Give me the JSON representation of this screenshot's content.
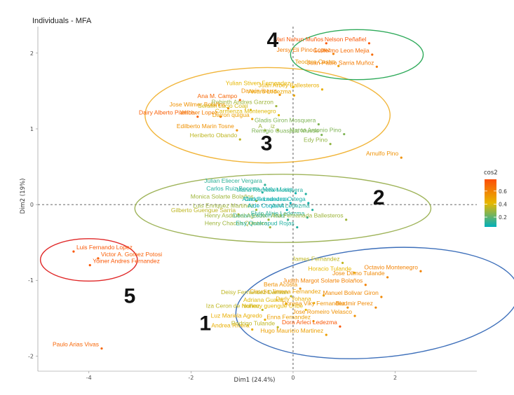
{
  "chart_data": {
    "type": "scatter",
    "title": "Individuals - MFA",
    "xlabel": "Dim1 (24.4%)",
    "ylabel": "Dim2 (19%)",
    "xlim": [
      -5.0,
      3.6
    ],
    "ylim": [
      -2.2,
      2.35
    ],
    "x_ticks": [
      -4,
      -2,
      0,
      2
    ],
    "y_ticks": [
      -2,
      -1,
      0,
      1,
      2
    ],
    "legend": {
      "title": "cos2",
      "ticks": [
        0.2,
        0.4,
        0.6
      ],
      "range": [
        0.05,
        0.78
      ],
      "placement": "right"
    },
    "colors": {
      "low": "#00AFBB",
      "mid": "#E7B800",
      "high": "#FC4E07"
    },
    "points": [
      {
        "label": "Vari Nahun Muños",
        "x": 0.65,
        "y": 2.13,
        "cos2": 0.75
      },
      {
        "label": "Nelson Peñafiel",
        "x": 1.49,
        "y": 2.13,
        "cos2": 0.75
      },
      {
        "label": "Jersy Eli Pino Lopez",
        "x": 0.79,
        "y": 1.99,
        "cos2": 0.62
      },
      {
        "label": "Guillermo Leon Mejia",
        "x": 1.55,
        "y": 1.98,
        "cos2": 0.68
      },
      {
        "label": "Teodoro Castro",
        "x": 0.89,
        "y": 1.83,
        "cos2": 0.52
      },
      {
        "label": "Juan Pablo Sarria Muñoz",
        "x": 1.64,
        "y": 1.82,
        "cos2": 0.62
      },
      {
        "label": "Yulian Stiven Fernandez",
        "x": 0.0,
        "y": 1.55,
        "cos2": 0.42
      },
      {
        "label": "Juan Arbey Ballesteros",
        "x": 0.57,
        "y": 1.52,
        "cos2": 0.45
      },
      {
        "label": "Darwin Ibarra",
        "x": -0.26,
        "y": 1.45,
        "cos2": 0.55
      },
      {
        "label": "Alvaro Ledezma",
        "x": 0.02,
        "y": 1.44,
        "cos2": 0.48
      },
      {
        "label": "Ana M. Campo",
        "x": -1.04,
        "y": 1.38,
        "cos2": 0.7
      },
      {
        "label": "Robinth Andres Garzon",
        "x": -0.33,
        "y": 1.3,
        "cos2": 0.3
      },
      {
        "label": "Jose Wilmer Bolaños",
        "x": -1.27,
        "y": 1.27,
        "cos2": 0.55
      },
      {
        "label": "Serafin Lucio Coaji",
        "x": -0.83,
        "y": 1.25,
        "cos2": 0.38
      },
      {
        "label": "Carmenza Montenegro",
        "x": -0.28,
        "y": 1.18,
        "cos2": 0.4
      },
      {
        "label": "Dairy Alberto Piamba",
        "x": -1.87,
        "y": 1.16,
        "cos2": 0.72
      },
      {
        "label": "Wilcher Lopez",
        "x": -1.42,
        "y": 1.16,
        "cos2": 0.62
      },
      {
        "label": "Dairon quigua",
        "x": -0.8,
        "y": 1.13,
        "cos2": 0.5
      },
      {
        "label": "Gladis Giron Mosquera",
        "x": 0.5,
        "y": 1.06,
        "cos2": 0.25
      },
      {
        "label": "Edilberto Marin Tosne",
        "x": -1.1,
        "y": 0.98,
        "cos2": 0.55
      },
      {
        "label": "A",
        "x": -0.55,
        "y": 0.98,
        "cos2": 0.3
      },
      {
        "label": "iz",
        "x": -0.3,
        "y": 0.98,
        "cos2": 0.3
      },
      {
        "label": "Marco Antonio Pino",
        "x": 1.0,
        "y": 0.93,
        "cos2": 0.25
      },
      {
        "label": "Remigio Guaspud Muese",
        "x": 0.56,
        "y": 0.92,
        "cos2": 0.25
      },
      {
        "label": "Heriberto Obando",
        "x": -1.04,
        "y": 0.86,
        "cos2": 0.35
      },
      {
        "label": "Edy Pino",
        "x": 0.73,
        "y": 0.8,
        "cos2": 0.28
      },
      {
        "label": "Arnulfo Pino",
        "x": 2.12,
        "y": 0.62,
        "cos2": 0.55
      },
      {
        "label": "Julian Eliecer Vergara",
        "x": -0.55,
        "y": 0.26,
        "cos2": 0.12
      },
      {
        "label": "Carlos Ruiz Becerra",
        "x": -0.6,
        "y": 0.16,
        "cos2": 0.1
      },
      {
        "label": "Melva Laso",
        "x": 0.05,
        "y": 0.15,
        "cos2": 0.08
      },
      {
        "label": "Maria Romelia Mosquera",
        "x": 0.25,
        "y": 0.14,
        "cos2": 0.1
      },
      {
        "label": "Monica Solarte Bolaños",
        "x": -0.72,
        "y": 0.05,
        "cos2": 0.3
      },
      {
        "label": "Carlos Ledezma",
        "x": -0.05,
        "y": 0.02,
        "cos2": 0.06
      },
      {
        "label": "Alirio Fernandez Ortega",
        "x": 0.3,
        "y": 0.02,
        "cos2": 0.08
      },
      {
        "label": "Luis Enriquez Martinez",
        "x": -0.72,
        "y": -0.07,
        "cos2": 0.3
      },
      {
        "label": "Aide Coque A",
        "x": -0.12,
        "y": -0.07,
        "cos2": 0.05
      },
      {
        "label": "Ariel Ledezma",
        "x": 0.38,
        "y": -0.07,
        "cos2": 0.1
      },
      {
        "label": "Gilberto Guengue Sarria",
        "x": -1.07,
        "y": -0.13,
        "cos2": 0.35
      },
      {
        "label": "Henry Asdrubal Agredo",
        "x": -0.48,
        "y": -0.2,
        "cos2": 0.3
      },
      {
        "label": "Derian Estiven Ruiz",
        "x": -0.1,
        "y": -0.2,
        "cos2": 0.15
      },
      {
        "label": "Elvio Alirio Ledezma",
        "x": 0.28,
        "y": -0.17,
        "cos2": 0.12
      },
      {
        "label": "Ana Fernanada Ballesteros",
        "x": 1.04,
        "y": -0.2,
        "cos2": 0.3
      },
      {
        "label": "Henry Chacon Quintero",
        "x": -0.45,
        "y": -0.3,
        "cos2": 0.3
      },
      {
        "label": "Elsy Qualcapud Rojas",
        "x": 0.08,
        "y": -0.3,
        "cos2": 0.1
      },
      {
        "label": "Luis Fernando Lopez",
        "x": -4.3,
        "y": -0.62,
        "cos2": 0.75
      },
      {
        "label": "Victor A. Gomez Potosi",
        "x": -3.82,
        "y": -0.71,
        "cos2": 0.72
      },
      {
        "label": "Yoiner Andres Fernandez",
        "x": -3.98,
        "y": -0.8,
        "cos2": 0.75
      },
      {
        "label": "James Fernandez",
        "x": 0.97,
        "y": -0.77,
        "cos2": 0.35
      },
      {
        "label": "Horacio Tulande",
        "x": 1.2,
        "y": -0.9,
        "cos2": 0.42
      },
      {
        "label": "Octavio Montenegro",
        "x": 2.5,
        "y": -0.88,
        "cos2": 0.6
      },
      {
        "label": "Jose Dilmo Tulande",
        "x": 1.85,
        "y": -0.96,
        "cos2": 0.58
      },
      {
        "label": "Judith Margot Solarte Bolaños",
        "x": 1.42,
        "y": -1.06,
        "cos2": 0.6
      },
      {
        "label": "Berta Acosta",
        "x": 0.14,
        "y": -1.11,
        "cos2": 0.55
      },
      {
        "label": "Claudia Jimena Fernandez",
        "x": 0.6,
        "y": -1.2,
        "cos2": 0.5
      },
      {
        "label": "Deisy Fernandez Damian",
        "x": -0.04,
        "y": -1.21,
        "cos2": 0.35
      },
      {
        "label": "Manuel Bolivar Giron",
        "x": 1.73,
        "y": -1.22,
        "cos2": 0.58
      },
      {
        "label": "Adriana Guaca",
        "x": -0.14,
        "y": -1.31,
        "cos2": 0.4
      },
      {
        "label": "Derly Yohana",
        "x": 0.41,
        "y": -1.3,
        "cos2": 0.45
      },
      {
        "label": "Dorena Viky Fernandez",
        "x": 1.07,
        "y": -1.36,
        "cos2": 0.55
      },
      {
        "label": "Bladmir Perez",
        "x": 1.62,
        "y": -1.36,
        "cos2": 0.58
      },
      {
        "label": "Iza Ceron de muñoz",
        "x": -0.6,
        "y": -1.39,
        "cos2": 0.35
      },
      {
        "label": "Noheny guengue Uribe",
        "x": 0.25,
        "y": -1.39,
        "cos2": 0.42
      },
      {
        "label": "Jose Romeiro Velasco",
        "x": 1.21,
        "y": -1.47,
        "cos2": 0.55
      },
      {
        "label": "Luz Mariela Agredo",
        "x": -0.55,
        "y": -1.52,
        "cos2": 0.45
      },
      {
        "label": "Enna Fernandez",
        "x": 0.4,
        "y": -1.54,
        "cos2": 0.5
      },
      {
        "label": "Dora Arleci Ledezma",
        "x": 0.92,
        "y": -1.61,
        "cos2": 0.75
      },
      {
        "label": "Andrea Rivera",
        "x": -0.8,
        "y": -1.65,
        "cos2": 0.45
      },
      {
        "label": "Rodrigo Tulande",
        "x": -0.3,
        "y": -1.62,
        "cos2": 0.35
      },
      {
        "label": "Hugo Mauricio Martinez",
        "x": 0.65,
        "y": -1.72,
        "cos2": 0.5
      },
      {
        "label": "Paulo Arias Vivas",
        "x": -3.75,
        "y": -1.9,
        "cos2": 0.7
      }
    ],
    "clusters": [
      {
        "number": "1",
        "color": "#3d6fba"
      },
      {
        "number": "2",
        "color": "#9fb45a"
      },
      {
        "number": "3",
        "color": "#f1b53a"
      },
      {
        "number": "4",
        "color": "#2eaa5a"
      },
      {
        "number": "5",
        "color": "#e02727"
      }
    ]
  }
}
